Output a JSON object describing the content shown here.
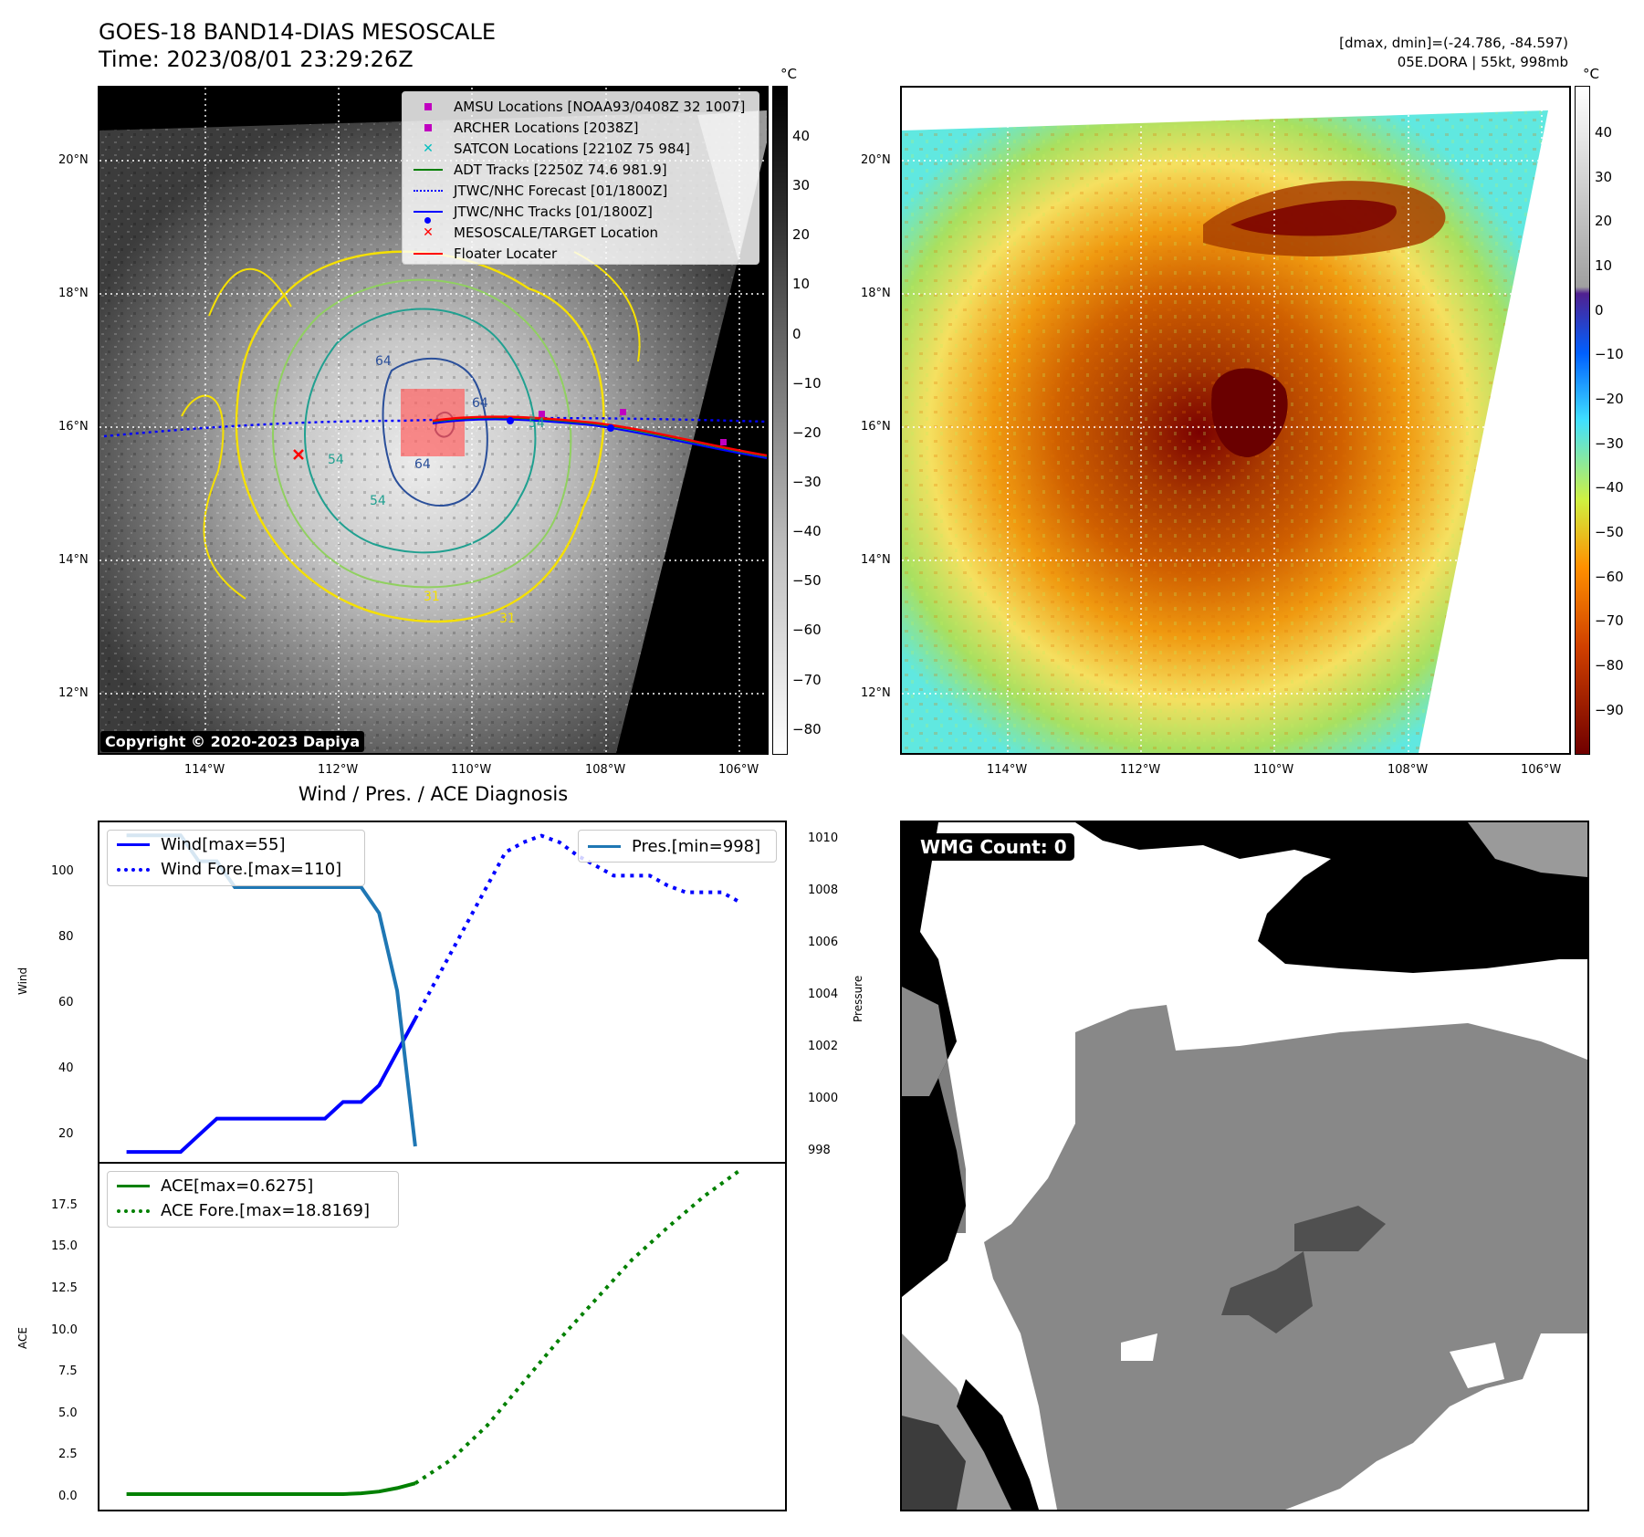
{
  "header": {
    "title": "GOES-18 BAND14-DIAS MESOSCALE",
    "time": "Time: 2023/08/01 23:29:26Z",
    "dmax_dmin": "[dmax, dmin]=(-24.786, -84.597)",
    "storm": "05E.DORA | 55kt, 998mb"
  },
  "map": {
    "lat_labels": [
      "20°N",
      "18°N",
      "16°N",
      "14°N",
      "12°N"
    ],
    "lon_labels": [
      "114°W",
      "112°W",
      "110°W",
      "108°W",
      "106°W"
    ],
    "copyright": "Copyright © 2020-2023 Dapiya",
    "contour_labels": [
      "64",
      "64",
      "54",
      "54",
      "54",
      "31",
      "31",
      "64"
    ],
    "legend": [
      {
        "label": "AMSU Locations [NOAA93/0408Z 32 1007]",
        "symbol": "square",
        "color": "#c000c0"
      },
      {
        "label": "ARCHER Locations [2038Z]",
        "symbol": "square",
        "color": "#c000c0"
      },
      {
        "label": "SATCON Locations [2210Z 75 984]",
        "symbol": "x",
        "color": "#00bfbf"
      },
      {
        "label": "ADT Tracks [2250Z 74.6 981.9]",
        "symbol": "line",
        "color": "#007f00"
      },
      {
        "label": "JTWC/NHC Forecast [01/1800Z]",
        "symbol": "dotted",
        "color": "#0000ff"
      },
      {
        "label": "JTWC/NHC Tracks [01/1800Z]",
        "symbol": "line-dot",
        "color": "#0000ff"
      },
      {
        "label": "MESOSCALE/TARGET Location",
        "symbol": "x",
        "color": "#ff0000"
      },
      {
        "label": "Floater Locater",
        "symbol": "line",
        "color": "#ff0000"
      }
    ]
  },
  "colorbar_gray": {
    "unit": "°C",
    "ticks": [
      "40",
      "30",
      "20",
      "10",
      "0",
      "−10",
      "−20",
      "−30",
      "−40",
      "−50",
      "−60",
      "−70",
      "−80"
    ]
  },
  "colorbar_color": {
    "unit": "°C",
    "ticks": [
      "40",
      "30",
      "20",
      "10",
      "0",
      "−10",
      "−20",
      "−30",
      "−40",
      "−50",
      "−60",
      "−70",
      "−80",
      "−90"
    ]
  },
  "diag": {
    "title": "Wind / Pres. / ACE Diagnosis",
    "wind_ylabel": "Wind",
    "pres_ylabel": "Pressure",
    "ace_ylabel": "ACE",
    "wind_ticks": [
      "100",
      "80",
      "60",
      "40",
      "20"
    ],
    "pres_ticks": [
      "1010",
      "1008",
      "1006",
      "1004",
      "1002",
      "1000",
      "998"
    ],
    "ace_ticks": [
      "17.5",
      "15.0",
      "12.5",
      "10.0",
      "7.5",
      "5.0",
      "2.5",
      "0.0"
    ],
    "legend_wind": "Wind[max=55]",
    "legend_wind_fore": "Wind Fore.[max=110]",
    "legend_pres": "Pres.[min=998]",
    "legend_ace": "ACE[max=0.6275]",
    "legend_ace_fore": "ACE Fore.[max=18.8169]"
  },
  "wmg": {
    "label": "WMG Count: 0"
  },
  "chart_data": [
    {
      "type": "line",
      "title": "Wind / Pres. / ACE Diagnosis",
      "ylabel": "Wind",
      "ylim": [
        12,
        114
      ],
      "x": [
        0,
        1,
        2,
        3,
        4,
        5,
        6,
        7,
        8,
        9,
        10,
        11,
        12,
        13,
        14,
        15,
        16,
        17,
        18,
        19,
        20,
        21,
        22,
        23,
        24,
        25,
        26,
        27,
        28,
        29,
        30,
        31,
        32,
        33,
        34,
        35
      ],
      "series": [
        {
          "name": "Wind[max=55]",
          "color": "#0000ff",
          "style": "solid",
          "values": [
            15,
            15,
            15,
            15,
            20,
            25,
            25,
            25,
            25,
            25,
            25,
            25,
            30,
            30,
            35,
            45,
            55,
            null,
            null,
            null,
            null,
            null,
            null,
            null,
            null,
            null,
            null,
            null,
            null,
            null,
            null,
            null,
            null,
            null,
            null,
            null
          ]
        },
        {
          "name": "Wind Fore.[max=110]",
          "color": "#0000ff",
          "style": "dotted",
          "values": [
            null,
            null,
            null,
            null,
            null,
            null,
            null,
            null,
            null,
            null,
            null,
            null,
            null,
            null,
            null,
            null,
            55,
            65,
            75,
            85,
            95,
            105,
            108,
            110,
            108,
            104,
            101,
            98,
            98,
            98,
            95,
            93,
            93,
            93,
            90,
            null
          ]
        }
      ]
    },
    {
      "type": "line",
      "ylabel": "Pressure",
      "ylim": [
        997.4,
        1010.5
      ],
      "x": [
        0,
        1,
        2,
        3,
        4,
        5,
        6,
        7,
        8,
        9,
        10,
        11,
        12,
        13,
        14,
        15,
        16
      ],
      "series": [
        {
          "name": "Pres.[min=998]",
          "color": "#1f77b4",
          "style": "solid",
          "values": [
            1010,
            1010,
            1010,
            1010,
            1009,
            1009,
            1008,
            1008,
            1008,
            1008,
            1008,
            1008,
            1008,
            1008,
            1007,
            1004,
            998
          ]
        }
      ]
    },
    {
      "type": "line",
      "ylabel": "ACE",
      "ylim": [
        -0.9,
        19.2
      ],
      "x": [
        0,
        2,
        4,
        6,
        8,
        10,
        12,
        13,
        14,
        15,
        16,
        18,
        20,
        22,
        24,
        26,
        28,
        30,
        32,
        34
      ],
      "series": [
        {
          "name": "ACE[max=0.6275]",
          "color": "#008000",
          "style": "solid",
          "values": [
            0,
            0,
            0,
            0,
            0,
            0,
            0,
            0.05,
            0.15,
            0.35,
            0.6275,
            null,
            null,
            null,
            null,
            null,
            null,
            null,
            null,
            null
          ]
        },
        {
          "name": "ACE Fore.[max=18.8169]",
          "color": "#008000",
          "style": "dotted",
          "values": [
            null,
            null,
            null,
            null,
            null,
            null,
            null,
            null,
            null,
            null,
            0.6275,
            2.0,
            4.0,
            6.5,
            9.0,
            11.3,
            13.6,
            15.5,
            17.3,
            18.8169
          ]
        }
      ]
    }
  ]
}
